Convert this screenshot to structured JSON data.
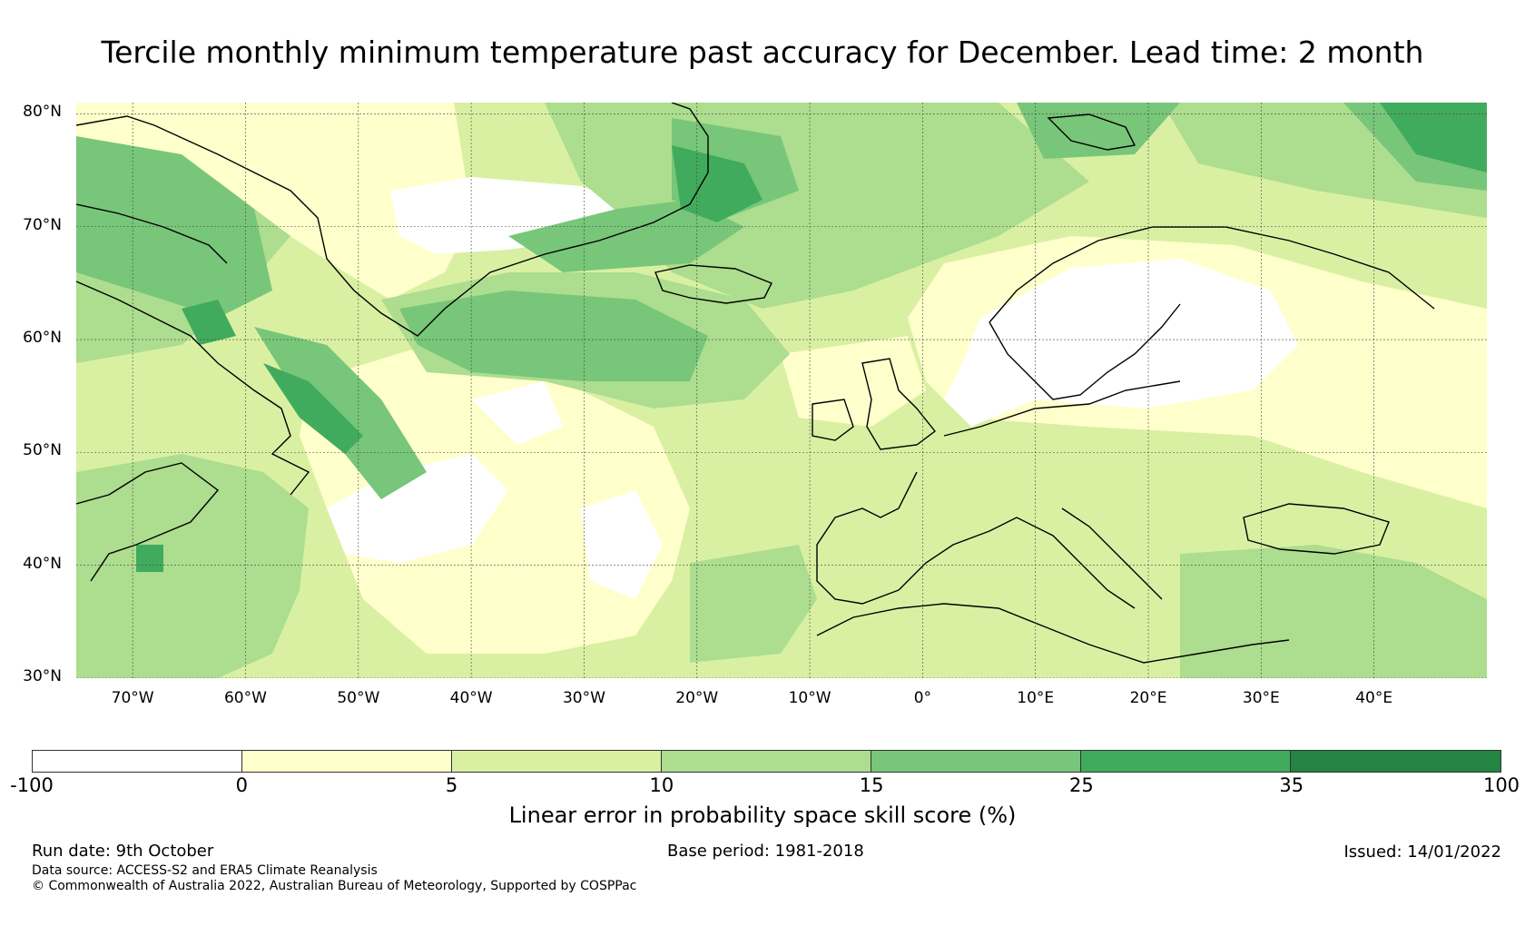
{
  "title": "Tercile monthly minimum temperature past accuracy for December. Lead time: 2 month",
  "map": {
    "lat_range": [
      30,
      81
    ],
    "lon_range": [
      -75,
      50
    ],
    "lat_labels": [
      "80°N",
      "70°N",
      "60°N",
      "50°N",
      "40°N",
      "30°N"
    ],
    "lon_labels": [
      "70°W",
      "60°W",
      "50°W",
      "40°W",
      "30°W",
      "20°W",
      "10°W",
      "0°",
      "10°E",
      "20°E",
      "30°E",
      "40°E"
    ],
    "gridlines": true
  },
  "colorbar": {
    "label": "Linear error in probability space skill score (%)",
    "ticks": [
      "-100",
      "0",
      "5",
      "10",
      "15",
      "25",
      "35",
      "100"
    ],
    "bins": [
      {
        "range": "-100 to 0",
        "color": "#ffffff"
      },
      {
        "range": "0 to 5",
        "color": "#ffffcc"
      },
      {
        "range": "5 to 10",
        "color": "#d9f0a3"
      },
      {
        "range": "10 to 15",
        "color": "#addd8e"
      },
      {
        "range": "15 to 25",
        "color": "#78c679"
      },
      {
        "range": "25 to 35",
        "color": "#41ab5d"
      },
      {
        "range": "35 to 100",
        "color": "#238443"
      }
    ]
  },
  "footer": {
    "run_date": "Run date: 9th October",
    "base_period": "Base period: 1981-2018",
    "issued": "Issued: 14/01/2022",
    "data_source": "Data source: ACCESS-S2 and ERA5 Climate Reanalysis",
    "copyright": "© Commonwealth of Australia 2022, Australian Bureau of Meteorology, Supported by COSPPac"
  }
}
